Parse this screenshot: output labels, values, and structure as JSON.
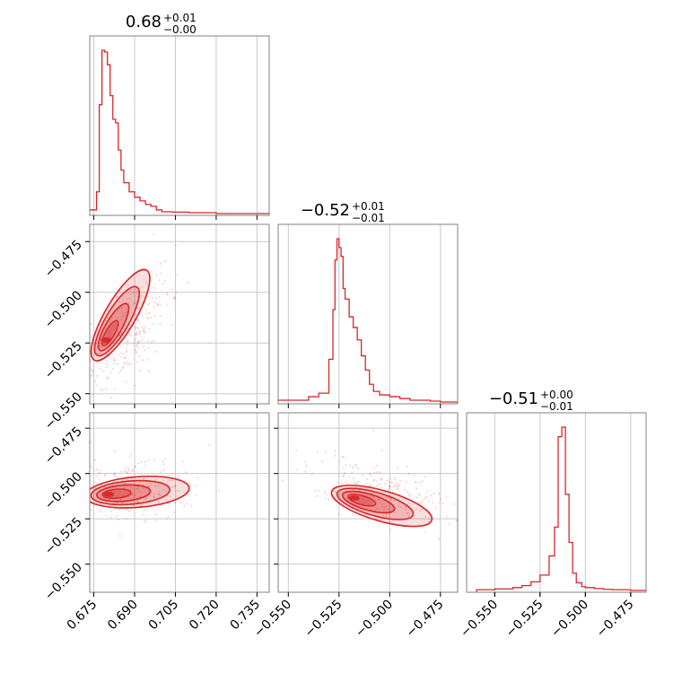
{
  "chart_data": {
    "type": "corner",
    "color": "#d62728",
    "grid": true,
    "parameters": [
      {
        "title": {
          "value": "0.68",
          "plus": "+0.01",
          "minus": "−0.00"
        },
        "range": [
          0.6735,
          0.7395
        ]
      },
      {
        "title": {
          "value": "−0.52",
          "plus": "+0.01",
          "minus": "−0.01"
        },
        "range": [
          -0.555,
          -0.4665
        ]
      },
      {
        "title": {
          "value": "−0.51",
          "plus": "+0.00",
          "minus": "−0.01"
        },
        "range": [
          -0.5655,
          -0.4665
        ]
      }
    ],
    "ticks": [
      {
        "values": [
          0.675,
          0.69,
          0.705,
          0.72,
          0.735
        ],
        "labels": [
          "0.675",
          "0.690",
          "0.705",
          "0.720",
          "0.735"
        ]
      },
      {
        "values": [
          -0.55,
          -0.525,
          -0.5,
          -0.475
        ],
        "labels": [
          "−0.550",
          "−0.525",
          "−0.500",
          "−0.475"
        ]
      },
      {
        "values": [
          -0.55,
          -0.525,
          -0.5,
          -0.475
        ],
        "labels": [
          "−0.550",
          "−0.525",
          "−0.500",
          "−0.475"
        ]
      }
    ],
    "histograms": [
      {
        "edges": [
          0.673,
          0.676,
          0.677,
          0.678,
          0.679,
          0.68,
          0.681,
          0.682,
          0.683,
          0.684,
          0.685,
          0.686,
          0.688,
          0.69,
          0.692,
          0.694,
          0.696,
          0.698,
          0.7,
          0.704,
          0.71,
          0.72,
          0.74
        ],
        "counts": [
          0.02,
          0.12,
          0.6,
          0.9,
          0.89,
          0.82,
          0.65,
          0.52,
          0.5,
          0.35,
          0.24,
          0.17,
          0.12,
          0.09,
          0.07,
          0.05,
          0.04,
          0.02,
          0.01,
          0.008,
          0.005,
          0.0
        ]
      },
      {
        "edges": [
          -0.56,
          -0.54,
          -0.535,
          -0.53,
          -0.528,
          -0.527,
          -0.526,
          -0.525,
          -0.524,
          -0.523,
          -0.522,
          -0.52,
          -0.518,
          -0.516,
          -0.514,
          -0.512,
          -0.51,
          -0.508,
          -0.505,
          -0.5,
          -0.495,
          -0.49,
          -0.485,
          -0.48,
          -0.475,
          -0.46
        ],
        "counts": [
          0.01,
          0.03,
          0.05,
          0.24,
          0.52,
          0.8,
          0.92,
          0.87,
          0.82,
          0.64,
          0.58,
          0.48,
          0.42,
          0.35,
          0.26,
          0.18,
          0.1,
          0.06,
          0.04,
          0.03,
          0.02,
          0.01,
          0.01,
          0.005,
          0.0
        ]
      },
      {
        "edges": [
          -0.56,
          -0.55,
          -0.54,
          -0.535,
          -0.53,
          -0.525,
          -0.52,
          -0.517,
          -0.515,
          -0.513,
          -0.511,
          -0.509,
          -0.507,
          -0.505,
          -0.502,
          -0.5,
          -0.495,
          -0.49,
          -0.485,
          -0.475,
          -0.465
        ],
        "counts": [
          0.004,
          0.008,
          0.015,
          0.025,
          0.045,
          0.08,
          0.18,
          0.33,
          0.8,
          0.85,
          0.5,
          0.25,
          0.09,
          0.04,
          0.02,
          0.015,
          0.01,
          0.006,
          0.004,
          0.0
        ]
      }
    ],
    "pairs": [
      {
        "row": 1,
        "col": 0,
        "center": [
          0.6795,
          -0.5235
        ],
        "slope": 2.3
      },
      {
        "row": 2,
        "col": 0,
        "center": [
          0.6805,
          -0.5115
        ],
        "slope": 0.12
      },
      {
        "row": 2,
        "col": 1,
        "center": [
          -0.5175,
          -0.5135
        ],
        "slope": -0.32
      }
    ]
  }
}
